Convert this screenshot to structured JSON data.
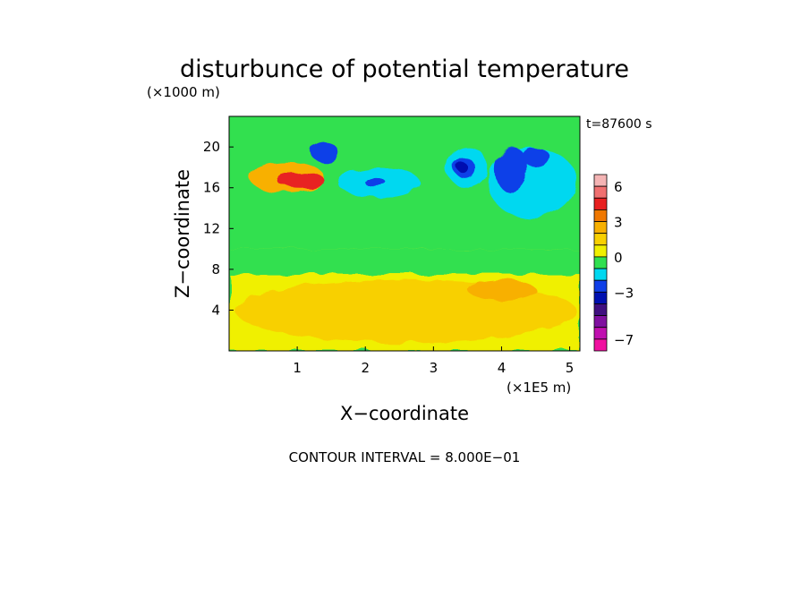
{
  "chart_data": {
    "type": "heatmap",
    "title": "disturbunce of potential temperature",
    "y_unit": "(×1000 m)",
    "x_unit": "(×1E5 m)",
    "xlabel": "X−coordinate",
    "ylabel": "Z−coordinate",
    "time_label": "t=87600 s",
    "footer": "CONTOUR INTERVAL = 8.000E−01",
    "xlim": [
      0,
      5.15
    ],
    "ylim": [
      0,
      23
    ],
    "x_ticks": [
      "1",
      "2",
      "3",
      "4",
      "5"
    ],
    "y_ticks": [
      "4",
      "8",
      "12",
      "16",
      "20"
    ],
    "colorbar": {
      "labels": [
        "6",
        "3",
        "0",
        "−3",
        "−7"
      ],
      "colors": [
        "#f4b4b4",
        "#f07070",
        "#e82020",
        "#f07800",
        "#f8b000",
        "#f8d000",
        "#f0f000",
        "#30e050",
        "#00d8f0",
        "#1040e8",
        "#0010b0",
        "#401080",
        "#8010a0",
        "#c010b0",
        "#f010a0"
      ]
    },
    "contours": [
      {
        "level": 0.4,
        "color": "#f0f000",
        "x_range": [
          0,
          5.15
        ],
        "z_range": [
          0,
          23
        ]
      },
      {
        "level": -0.4,
        "color": "#30e050",
        "x_range": [
          0,
          5.15
        ],
        "z_range": [
          10,
          23
        ]
      },
      {
        "level": -0.4,
        "color": "#30e050",
        "x_range": [
          0,
          5.15
        ],
        "z_range": [
          7.5,
          10
        ]
      },
      {
        "level": 1.2,
        "color": "#f8d000",
        "x_range": [
          0.1,
          5.1
        ],
        "z_range": [
          0.8,
          7
        ]
      },
      {
        "level": 2.0,
        "color": "#f8b000",
        "x_range": [
          0.3,
          1.4
        ],
        "z_range": [
          15.5,
          18.5
        ]
      },
      {
        "level": 2.8,
        "color": "#e82020",
        "x_range": [
          0.7,
          1.4
        ],
        "z_range": [
          16,
          17.5
        ]
      },
      {
        "level": -1.2,
        "color": "#00d8f0",
        "x_range": [
          1.6,
          2.8
        ],
        "z_range": [
          15,
          18
        ]
      },
      {
        "level": -2.0,
        "color": "#1040e8",
        "x_range": [
          2.0,
          2.3
        ],
        "z_range": [
          16,
          17
        ]
      },
      {
        "level": -2.0,
        "color": "#1040e8",
        "x_range": [
          1.2,
          1.6
        ],
        "z_range": [
          18.5,
          20.5
        ]
      },
      {
        "level": -1.2,
        "color": "#00d8f0",
        "x_range": [
          3.2,
          3.8
        ],
        "z_range": [
          16,
          20
        ]
      },
      {
        "level": -2.0,
        "color": "#1040e8",
        "x_range": [
          3.3,
          3.6
        ],
        "z_range": [
          17,
          19
        ]
      },
      {
        "level": -2.8,
        "color": "#0010b0",
        "x_range": [
          3.35,
          3.5
        ],
        "z_range": [
          17.5,
          18.5
        ]
      },
      {
        "level": -1.2,
        "color": "#00d8f0",
        "x_range": [
          3.8,
          5.1
        ],
        "z_range": [
          13,
          20
        ]
      },
      {
        "level": -2.0,
        "color": "#1040e8",
        "x_range": [
          3.9,
          4.4
        ],
        "z_range": [
          15.5,
          20
        ]
      },
      {
        "level": -2.0,
        "color": "#1040e8",
        "x_range": [
          4.3,
          4.7
        ],
        "z_range": [
          18,
          20
        ]
      },
      {
        "level": 2.0,
        "color": "#f8b000",
        "x_range": [
          3.5,
          4.5
        ],
        "z_range": [
          5,
          7
        ]
      }
    ]
  }
}
